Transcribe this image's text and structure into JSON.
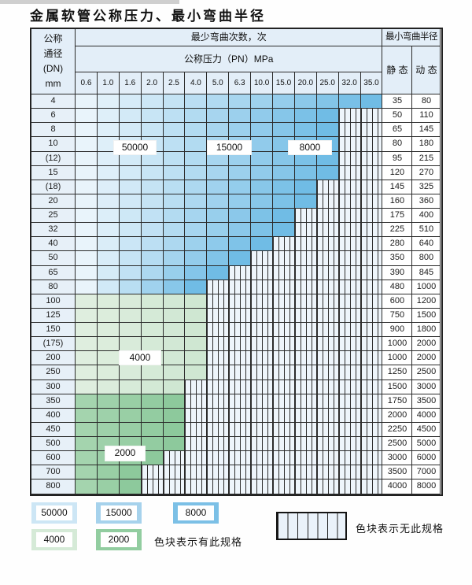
{
  "title": "金属软管公称压力、最小弯曲半径",
  "table": {
    "dn_header_lines": [
      "公称",
      "通径",
      "(DN)",
      "mm"
    ],
    "bend_header": "最少弯曲次数，次",
    "pn_header": "公称压力（PN）MPa",
    "radius_header": "最小弯曲半径",
    "static_label": "静 态",
    "dynamic_label": "动 态",
    "pressures": [
      "0.6",
      "1.0",
      "1.6",
      "2.0",
      "2.5",
      "4.0",
      "5.0",
      "6.3",
      "10.0",
      "15.0",
      "20.0",
      "25.0",
      "32.0",
      "35.0"
    ],
    "rows": [
      {
        "dn": "4",
        "static": "35",
        "dynamic": "80",
        "zone": "blue",
        "colored": 14
      },
      {
        "dn": "6",
        "static": "50",
        "dynamic": "110",
        "zone": "blue",
        "colored": 12
      },
      {
        "dn": "8",
        "static": "65",
        "dynamic": "145",
        "zone": "blue",
        "colored": 12
      },
      {
        "dn": "10",
        "static": "80",
        "dynamic": "180",
        "zone": "blue",
        "colored": 12
      },
      {
        "dn": "(12)",
        "static": "95",
        "dynamic": "215",
        "zone": "blue",
        "colored": 12
      },
      {
        "dn": "15",
        "static": "120",
        "dynamic": "270",
        "zone": "blue",
        "colored": 12
      },
      {
        "dn": "(18)",
        "static": "145",
        "dynamic": "325",
        "zone": "blue",
        "colored": 11
      },
      {
        "dn": "20",
        "static": "160",
        "dynamic": "360",
        "zone": "blue",
        "colored": 11
      },
      {
        "dn": "25",
        "static": "175",
        "dynamic": "400",
        "zone": "blue",
        "colored": 10
      },
      {
        "dn": "32",
        "static": "225",
        "dynamic": "510",
        "zone": "blue",
        "colored": 10
      },
      {
        "dn": "40",
        "static": "280",
        "dynamic": "640",
        "zone": "blue",
        "colored": 9
      },
      {
        "dn": "50",
        "static": "350",
        "dynamic": "800",
        "zone": "blue",
        "colored": 8
      },
      {
        "dn": "65",
        "static": "390",
        "dynamic": "845",
        "zone": "blue",
        "colored": 7
      },
      {
        "dn": "80",
        "static": "480",
        "dynamic": "1000",
        "zone": "blue",
        "colored": 6
      },
      {
        "dn": "100",
        "static": "600",
        "dynamic": "1200",
        "zone": "green_light",
        "colored": 6
      },
      {
        "dn": "125",
        "static": "750",
        "dynamic": "1500",
        "zone": "green_light",
        "colored": 6
      },
      {
        "dn": "150",
        "static": "900",
        "dynamic": "1800",
        "zone": "green_light",
        "colored": 6
      },
      {
        "dn": "(175)",
        "static": "1000",
        "dynamic": "2000",
        "zone": "green_light",
        "colored": 6
      },
      {
        "dn": "200",
        "static": "1000",
        "dynamic": "2000",
        "zone": "green_light",
        "colored": 6
      },
      {
        "dn": "250",
        "static": "1250",
        "dynamic": "2500",
        "zone": "green_light",
        "colored": 6
      },
      {
        "dn": "300",
        "static": "1500",
        "dynamic": "3000",
        "zone": "green_light",
        "colored": 5
      },
      {
        "dn": "350",
        "static": "1750",
        "dynamic": "3500",
        "zone": "green_dark",
        "colored": 5
      },
      {
        "dn": "400",
        "static": "2000",
        "dynamic": "4000",
        "zone": "green_dark",
        "colored": 5
      },
      {
        "dn": "450",
        "static": "2250",
        "dynamic": "4500",
        "zone": "green_dark",
        "colored": 5
      },
      {
        "dn": "500",
        "static": "2500",
        "dynamic": "5000",
        "zone": "green_dark",
        "colored": 5
      },
      {
        "dn": "600",
        "static": "3000",
        "dynamic": "6000",
        "zone": "green_dark",
        "colored": 4
      },
      {
        "dn": "700",
        "static": "3500",
        "dynamic": "7000",
        "zone": "green_dark",
        "colored": 3
      },
      {
        "dn": "800",
        "static": "4000",
        "dynamic": "8000",
        "zone": "green_dark",
        "colored": 3
      }
    ]
  },
  "overlay_labels": [
    {
      "text": "50000"
    },
    {
      "text": "15000"
    },
    {
      "text": "8000"
    },
    {
      "text": "4000"
    },
    {
      "text": "2000"
    }
  ],
  "cycle_zones": {
    "blue_columns": [
      {
        "pressure_cols": "0.6-2.5",
        "cycles": "50000"
      },
      {
        "pressure_cols": "4.0-6.3",
        "cycles": "15000"
      },
      {
        "pressure_cols": "10.0-35.0",
        "cycles": "8000"
      }
    ],
    "green_rows": [
      {
        "dn_rows": "100-300",
        "cycles": "4000"
      },
      {
        "dn_rows": "350-800",
        "cycles": "2000"
      }
    ]
  },
  "legend": {
    "swatches": [
      {
        "text": "50000",
        "zone": "blue_light"
      },
      {
        "text": "15000",
        "zone": "blue_mid"
      },
      {
        "text": "8000",
        "zone": "blue_dark"
      },
      {
        "text": "4000",
        "zone": "green_light"
      },
      {
        "text": "2000",
        "zone": "green_dark"
      }
    ],
    "has_spec_text": "色块表示有此规格",
    "no_spec_text": "色块表示无此规格"
  },
  "colors": {
    "blue_light": "#cde6f5",
    "blue_mid": "#a6d2ec",
    "blue_dark": "#7cc0e6",
    "green_light": "#d5ead7",
    "green_dark": "#92cda0",
    "row_blue_from": "#e9f4fb",
    "row_blue_to": "#70bce5",
    "row_green_light_from": "#dfeedf",
    "row_green_light_to": "#cfe7d2",
    "row_green_dark_from": "#a4d4ae",
    "row_green_dark_to": "#8dc99c",
    "header_bg": "#e3eef8",
    "hatch_bg": "#eef5fb"
  }
}
